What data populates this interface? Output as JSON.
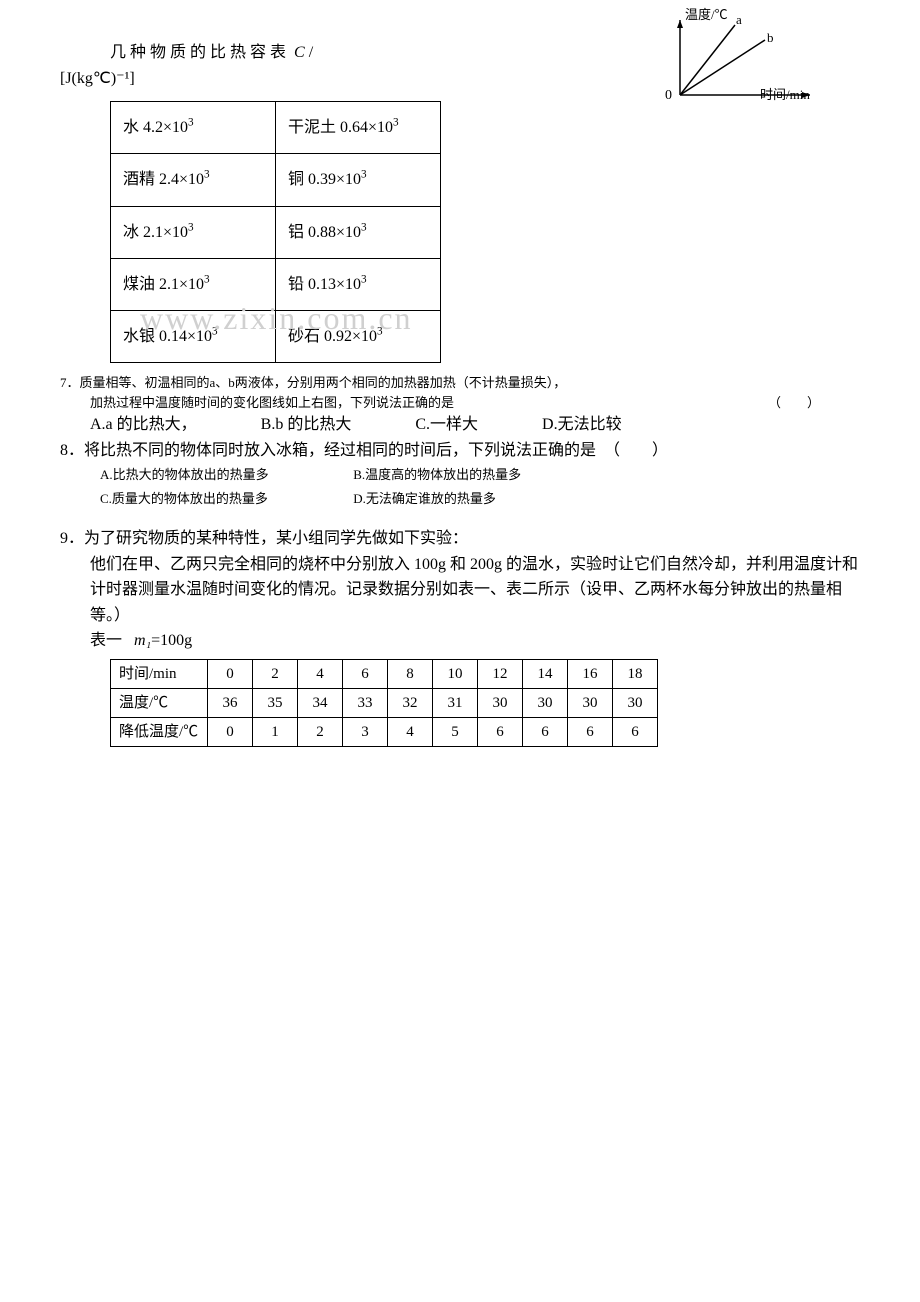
{
  "title_prefix": "几种物质的比热容表",
  "title_var": "C",
  "unit_text": "[J(kg℃)⁻¹]",
  "chart": {
    "y_axis_label": "温度/℃",
    "x_axis_label": "时间/min",
    "origin_label": "0",
    "line_a_label": "a",
    "line_b_label": "b",
    "axis_color": "#000000",
    "line_color": "#000000"
  },
  "heat_capacity_table": {
    "rows": [
      {
        "left_name": "水",
        "left_val": "4.2×10³",
        "right_name": "干泥土",
        "right_val": "0.64×10³"
      },
      {
        "left_name": "酒精",
        "left_val": "2.4×10³",
        "right_name": "铜",
        "right_val": "0.39×10³"
      },
      {
        "left_name": "冰",
        "left_val": "2.1×10³",
        "right_name": "铝",
        "right_val": "0.88×10³"
      },
      {
        "left_name": "煤油",
        "left_val": "2.1×10³",
        "right_name": "铅",
        "right_val": "0.13×10³"
      },
      {
        "left_name": "水银",
        "left_val": "0.14×10³",
        "right_name": "砂石",
        "right_val": "0.92×10³"
      }
    ]
  },
  "q7": {
    "number": "7．",
    "line1": "质量相等、初温相同的a、b两液体，分别用两个相同的加热器加热（不计热量损失），",
    "line2": "加热过程中温度随时间的变化图线如上右图，下列说法正确的是",
    "blank": "（　　）",
    "options": {
      "a": "A.a 的比热大，",
      "b": "B.b 的比热大",
      "c": "C.一样大",
      "d": "D.无法比较"
    }
  },
  "q8": {
    "text": "8．将比热不同的物体同时放入冰箱，经过相同的时间后，下列说法正确的是　（　　）",
    "options": {
      "a": "A.比热大的物体放出的热量多",
      "b": "B.温度高的物体放出的热量多",
      "c": "C.质量大的物体放出的热量多",
      "d": "D.无法确定谁放的热量多"
    }
  },
  "q9": {
    "number": "9．",
    "line1": "为了研究物质的某种特性，某小组同学先做如下实验：",
    "body": "他们在甲、乙两只完全相同的烧杯中分别放入 100g 和 200g 的温水，实验时让它们自然冷却，并利用温度计和计时器测量水温随时间变化的情况。记录数据分别如表一、表二所示（设甲、乙两杯水每分钟放出的热量相等。）",
    "table1_label": "表一",
    "table1_mass_var": "m₁",
    "table1_mass_val": "=100g"
  },
  "data_table1": {
    "headers": {
      "time": "时间/min",
      "temp": "温度/℃",
      "drop": "降低温度/℃"
    },
    "time_row": [
      "0",
      "2",
      "4",
      "6",
      "8",
      "10",
      "12",
      "14",
      "16",
      "18"
    ],
    "temp_row": [
      "36",
      "35",
      "34",
      "33",
      "32",
      "31",
      "30",
      "30",
      "30",
      "30"
    ],
    "drop_row": [
      "0",
      "1",
      "2",
      "3",
      "4",
      "5",
      "6",
      "6",
      "6",
      "6"
    ]
  },
  "watermark": "www.zixin.com.cn"
}
